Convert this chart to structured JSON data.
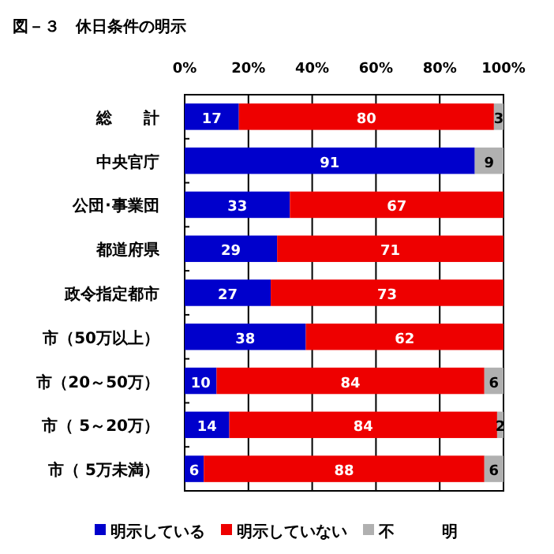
{
  "chart_data": {
    "type": "bar",
    "orientation": "horizontal",
    "stacked": true,
    "title": "図－３　休日条件の明示",
    "categories": [
      "総　　計",
      "中央官庁",
      "公団･事業団",
      "都道府県",
      "政令指定都市",
      "市（50万以上）",
      "市（20～50万）",
      "市（ 5～20万）",
      "市（ 5万未満）"
    ],
    "series": [
      {
        "name": "明示している",
        "color": "#0000cc",
        "values": [
          17,
          91,
          33,
          29,
          27,
          38,
          10,
          14,
          6
        ]
      },
      {
        "name": "明示していない",
        "color": "#ee0000",
        "values": [
          80,
          null,
          67,
          71,
          73,
          62,
          84,
          84,
          88
        ]
      },
      {
        "name": "不　　　明",
        "color": "#b0b0b0",
        "values": [
          3,
          9,
          null,
          null,
          null,
          null,
          6,
          2,
          6
        ]
      }
    ],
    "xlim": [
      0,
      100
    ],
    "xticks": [
      {
        "value": 0,
        "label": "0%"
      },
      {
        "value": 20,
        "label": "20%"
      },
      {
        "value": 40,
        "label": "40%"
      },
      {
        "value": 60,
        "label": "60%"
      },
      {
        "value": 80,
        "label": "80%"
      },
      {
        "value": 100,
        "label": "100%"
      }
    ],
    "grid": "x",
    "data_labels": true,
    "legend": "bottom"
  }
}
